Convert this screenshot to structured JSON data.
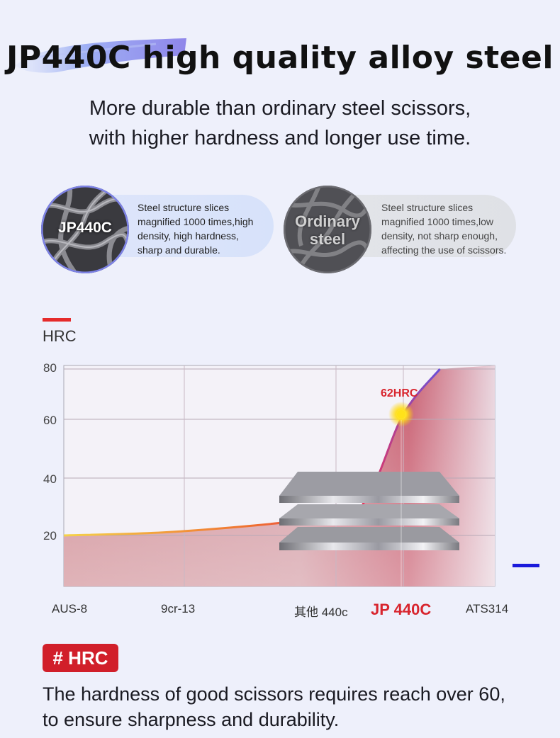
{
  "header": {
    "title": "JP440C high quality alloy steel",
    "subtitle_line1": "More durable than ordinary steel scissors,",
    "subtitle_line2": "with higher hardness and longer use time."
  },
  "comparison": {
    "jp440c": {
      "label": "JP440C",
      "text_lines": [
        "Steel structure slices",
        "magnified 1000 times,high",
        "density, high hardness,",
        "sharp and durable."
      ]
    },
    "ordinary": {
      "label_line1": "Ordinary",
      "label_line2": "steel",
      "text_lines": [
        "Steel structure slices",
        "magnified 1000 times,low",
        "density, not sharp enough,",
        "affecting the use of scissors."
      ]
    }
  },
  "chart_data": {
    "type": "area",
    "ylabel": "HRC",
    "ylim": [
      0,
      80
    ],
    "yticks": [
      "80",
      "60",
      "40",
      "20"
    ],
    "categories": [
      "AUS-8",
      "9cr-13",
      "其他 440c",
      "JP 440C",
      "ATS314"
    ],
    "highlight_category": "JP 440C",
    "annotation": "62HRC",
    "annotation_value": 62,
    "series": [
      {
        "name": "HRC curve",
        "x": [
          0,
          1,
          2,
          2.5,
          3,
          3.4
        ],
        "y": [
          20,
          21.5,
          27,
          35,
          62,
          80
        ]
      }
    ],
    "colors": {
      "accent": "#d8252e",
      "curve_start": "#f5d34a",
      "curve_mid": "#f07030",
      "curve_end": "#6a4fd8"
    }
  },
  "footer": {
    "tag": "# HRC",
    "line1": "The hardness of good scissors requires reach over 60,",
    "line2": "to ensure sharpness and durability."
  }
}
